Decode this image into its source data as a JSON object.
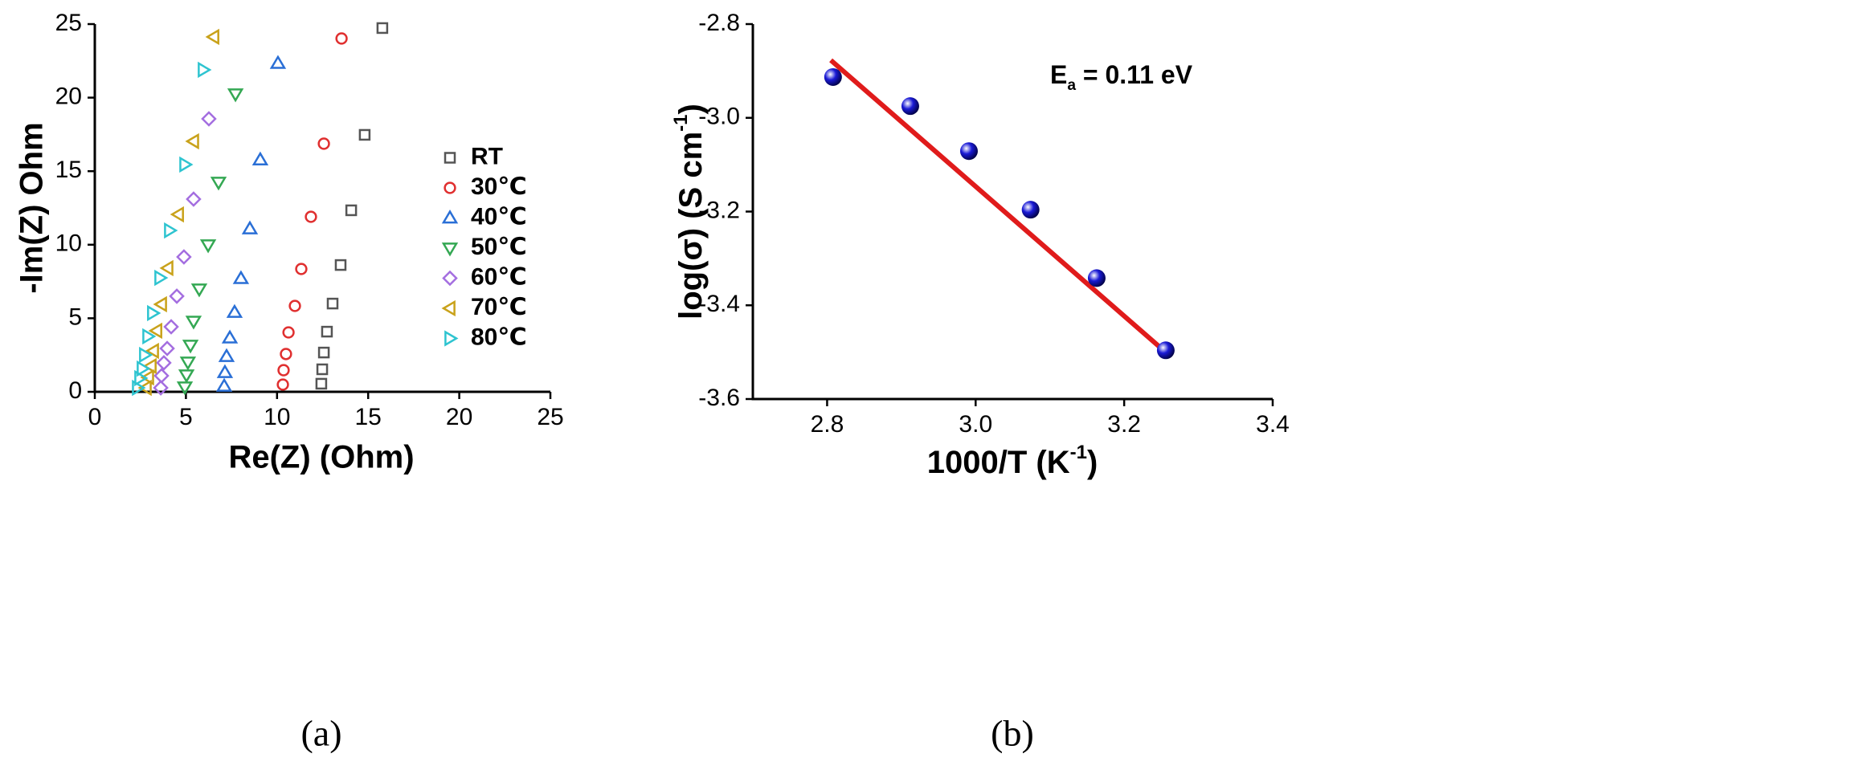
{
  "chart_data": [
    {
      "type": "scatter",
      "xlabel": "Re(Z) (Ohm)",
      "ylabel": "-Im(Z) Ohm",
      "caption": "(a)",
      "xlim": [
        0,
        25
      ],
      "ylim": [
        0,
        25
      ],
      "xticks": [
        0,
        5,
        10,
        15,
        20,
        25
      ],
      "yticks": [
        0,
        5,
        10,
        15,
        20,
        25
      ],
      "legend_position": "center right",
      "series": [
        {
          "name": "RT",
          "color": "#555555",
          "marker": "square",
          "x": [
            12.43,
            12.48,
            12.57,
            12.74,
            13.05,
            13.49,
            14.07,
            14.81,
            15.78
          ],
          "values": [
            0.55,
            1.53,
            2.67,
            4.09,
            6.0,
            8.62,
            12.34,
            17.47,
            24.73
          ]
        },
        {
          "name": "30℃",
          "color": "#e03030",
          "marker": "circle",
          "x": [
            10.32,
            10.36,
            10.49,
            10.63,
            10.98,
            11.33,
            11.86,
            12.57,
            13.54
          ],
          "values": [
            0.49,
            1.47,
            2.57,
            4.04,
            5.84,
            8.35,
            11.9,
            16.87,
            24.02
          ]
        },
        {
          "name": "40℃",
          "color": "#2a6fd6",
          "marker": "triangle-up",
          "x": [
            7.1,
            7.14,
            7.23,
            7.41,
            7.67,
            8.02,
            8.51,
            9.08,
            10.05
          ],
          "values": [
            0.38,
            1.31,
            2.4,
            3.66,
            5.4,
            7.7,
            11.08,
            15.77,
            22.33
          ]
        },
        {
          "name": "50℃",
          "color": "#34a853",
          "marker": "triangle-down",
          "x": [
            4.94,
            5.03,
            5.11,
            5.25,
            5.42,
            5.73,
            6.22,
            6.79,
            7.72
          ],
          "values": [
            0.33,
            1.15,
            2.02,
            3.17,
            4.8,
            6.99,
            9.99,
            14.25,
            20.25
          ]
        },
        {
          "name": "60℃",
          "color": "#a46ee0",
          "marker": "diamond",
          "x": [
            3.62,
            3.66,
            3.79,
            3.97,
            4.19,
            4.5,
            4.89,
            5.42,
            6.26
          ],
          "values": [
            0.27,
            1.09,
            1.97,
            2.95,
            4.42,
            6.5,
            9.17,
            13.1,
            18.56
          ]
        },
        {
          "name": "70℃",
          "color": "#c9a21a",
          "marker": "triangle-left",
          "x": [
            2.82,
            2.95,
            3.09,
            3.22,
            3.4,
            3.66,
            4.01,
            4.59,
            5.42,
            6.53
          ],
          "values": [
            0.27,
            0.98,
            1.75,
            2.78,
            4.15,
            5.95,
            8.41,
            12.06,
            17.03,
            24.13
          ]
        },
        {
          "name": "80℃",
          "color": "#2ec4d0",
          "marker": "triangle-right",
          "x": [
            2.34,
            2.47,
            2.6,
            2.73,
            2.91,
            3.17,
            3.57,
            4.1,
            4.94,
            5.95
          ],
          "values": [
            0.27,
            0.93,
            1.58,
            2.51,
            3.77,
            5.35,
            7.75,
            10.97,
            15.45,
            21.89
          ]
        }
      ]
    },
    {
      "type": "scatter",
      "xlabel_parts": [
        "1000/T (K",
        "-1",
        ")"
      ],
      "ylabel_parts": [
        "log(σ) (S cm",
        "-1",
        ")"
      ],
      "caption": "(b)",
      "annotation_parts": [
        "E",
        "a",
        " = 0.11 eV"
      ],
      "xlim": [
        2.7,
        3.4
      ],
      "ylim": [
        -3.6,
        -2.8
      ],
      "xticks": [
        2.8,
        {
          "value": 3,
          "label": "3.0"
        },
        3.2,
        3.4
      ],
      "yticks": [
        -3.6,
        -3.4,
        -3.2,
        {
          "value": -3,
          "label": "-3.0"
        },
        -2.8
      ],
      "series": [
        {
          "color": "#1a1ad6",
          "marker": "sphere",
          "x": [
            2.808,
            2.912,
            2.991,
            3.074,
            3.163,
            3.256
          ],
          "values": [
            -2.913,
            -2.975,
            -3.071,
            -3.196,
            -3.342,
            -3.496
          ]
        }
      ],
      "fit_line": {
        "color": "#e01b1b",
        "x": [
          2.805,
          3.258
        ],
        "values": [
          -2.877,
          -3.503
        ]
      }
    }
  ]
}
